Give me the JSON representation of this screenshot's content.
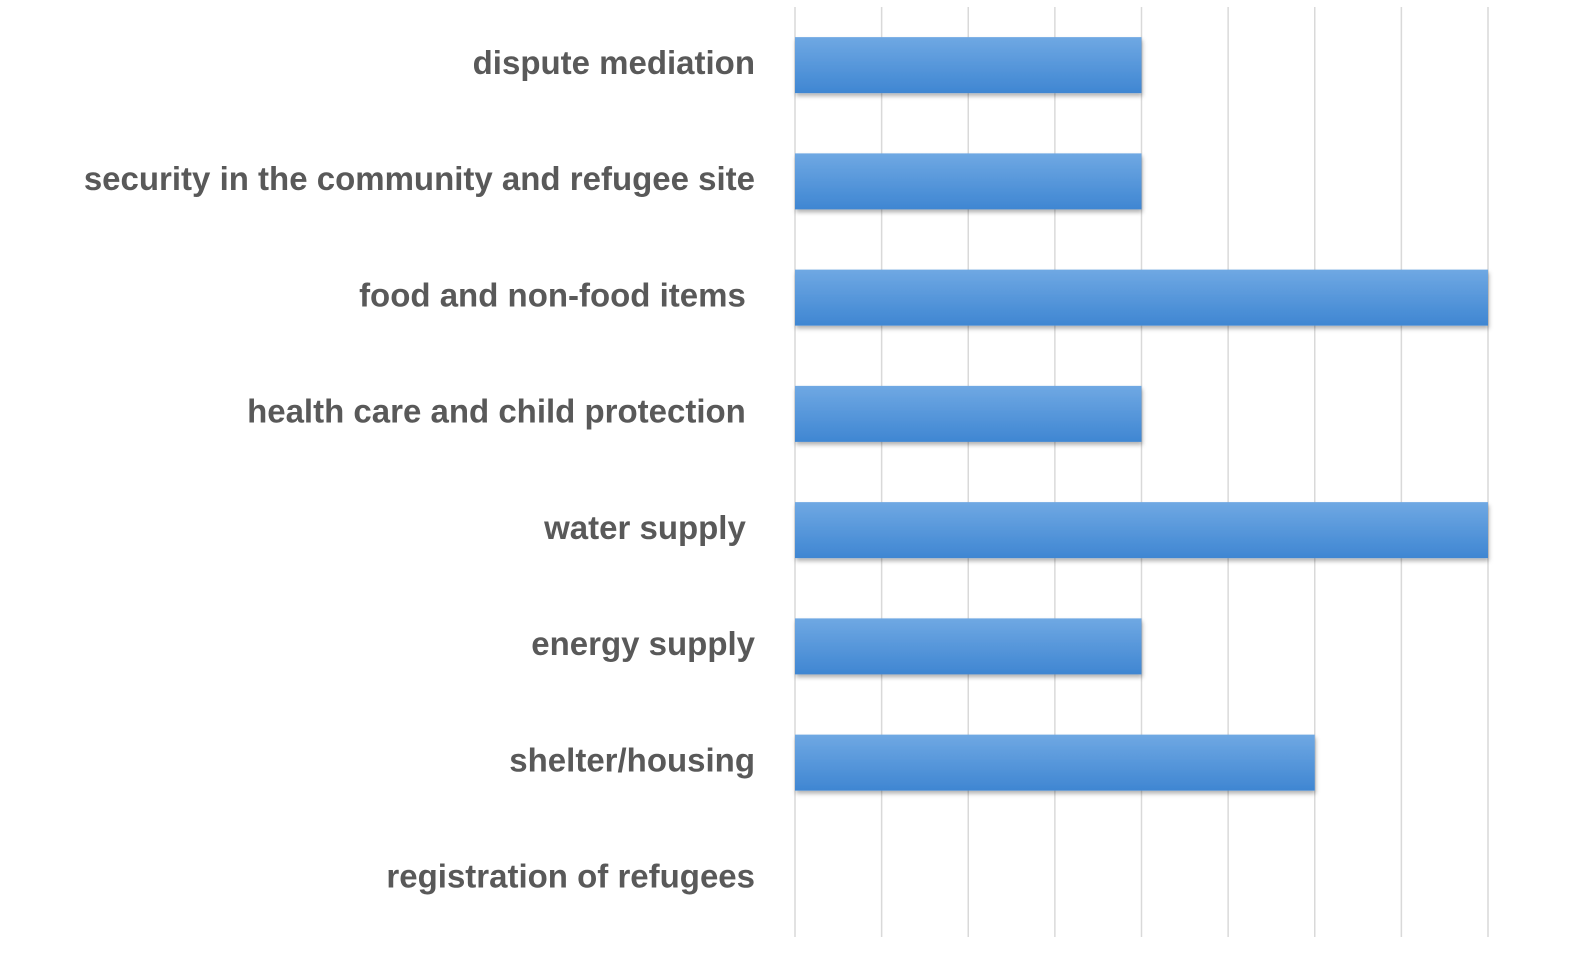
{
  "chart_data": {
    "type": "barh",
    "categories": [
      "dispute mediation",
      "security in the community and refugee site",
      "food and non-food items ",
      "health care and child protection ",
      "water supply ",
      "energy supply",
      "shelter/housing",
      "registration of refugees"
    ],
    "values": [
      4,
      4,
      8,
      4,
      8,
      4,
      6,
      0
    ],
    "color": "#4a8fd8",
    "xlim": [
      0,
      8
    ],
    "xticks": [
      0,
      1,
      2,
      3,
      4,
      5,
      6,
      7,
      8
    ],
    "grid": true
  }
}
